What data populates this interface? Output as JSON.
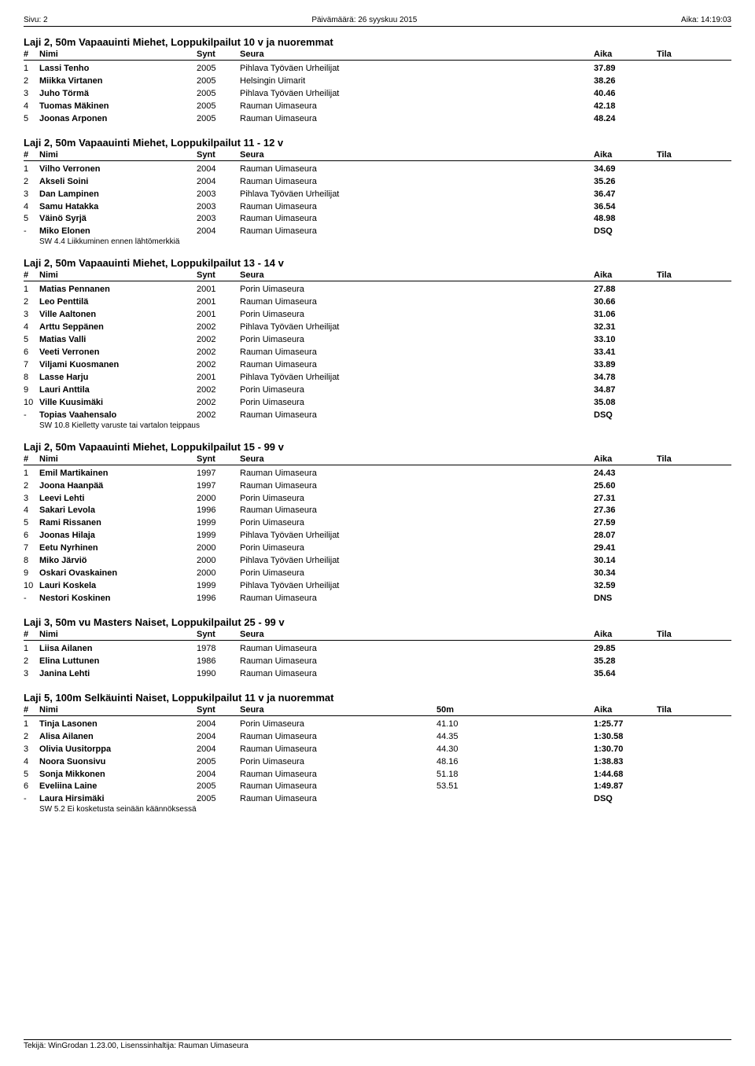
{
  "header": {
    "page": "Sivu: 2",
    "date": "Päivämäärä: 26 syyskuu 2015",
    "time": "Aika: 14:19:03"
  },
  "columns": {
    "rank": "#",
    "name": "Nimi",
    "synt": "Synt",
    "seura": "Seura",
    "split": "50m",
    "aika": "Aika",
    "tila": "Tila"
  },
  "events": [
    {
      "title": "Laji 2, 50m Vapaauinti Miehet, Loppukilpailut 10 v ja nuoremmat",
      "has_split": false,
      "rows": [
        {
          "r": "1",
          "name": "Lassi Tenho",
          "synt": "2005",
          "seura": "Pihlava Työväen Urheilijat",
          "aika": "37.89"
        },
        {
          "r": "2",
          "name": "Miikka Virtanen",
          "synt": "2005",
          "seura": "Helsingin Uimarit",
          "aika": "38.26"
        },
        {
          "r": "3",
          "name": "Juho Törmä",
          "synt": "2005",
          "seura": "Pihlava Työväen Urheilijat",
          "aika": "40.46"
        },
        {
          "r": "4",
          "name": "Tuomas Mäkinen",
          "synt": "2005",
          "seura": "Rauman Uimaseura",
          "aika": "42.18"
        },
        {
          "r": "5",
          "name": "Joonas Arponen",
          "synt": "2005",
          "seura": "Rauman Uimaseura",
          "aika": "48.24"
        }
      ]
    },
    {
      "title": "Laji 2, 50m Vapaauinti Miehet, Loppukilpailut 11 - 12 v",
      "has_split": false,
      "rows": [
        {
          "r": "1",
          "name": "Vilho Verronen",
          "synt": "2004",
          "seura": "Rauman Uimaseura",
          "aika": "34.69"
        },
        {
          "r": "2",
          "name": "Akseli Soini",
          "synt": "2004",
          "seura": "Rauman Uimaseura",
          "aika": "35.26"
        },
        {
          "r": "3",
          "name": "Dan Lampinen",
          "synt": "2003",
          "seura": "Pihlava Työväen Urheilijat",
          "aika": "36.47"
        },
        {
          "r": "4",
          "name": "Samu Hatakka",
          "synt": "2003",
          "seura": "Rauman Uimaseura",
          "aika": "36.54"
        },
        {
          "r": "5",
          "name": "Väinö Syrjä",
          "synt": "2003",
          "seura": "Rauman Uimaseura",
          "aika": "48.98"
        },
        {
          "r": "-",
          "name": "Miko Elonen",
          "synt": "2004",
          "seura": "Rauman Uimaseura",
          "aika": "DSQ",
          "note": "SW 4.4 Liikkuminen ennen lähtömerkkiä"
        }
      ]
    },
    {
      "title": "Laji 2, 50m Vapaauinti Miehet, Loppukilpailut 13 - 14 v",
      "has_split": false,
      "rows": [
        {
          "r": "1",
          "name": "Matias Pennanen",
          "synt": "2001",
          "seura": "Porin Uimaseura",
          "aika": "27.88"
        },
        {
          "r": "2",
          "name": "Leo Penttilä",
          "synt": "2001",
          "seura": "Rauman Uimaseura",
          "aika": "30.66"
        },
        {
          "r": "3",
          "name": "Ville Aaltonen",
          "synt": "2001",
          "seura": "Porin Uimaseura",
          "aika": "31.06"
        },
        {
          "r": "4",
          "name": "Arttu Seppänen",
          "synt": "2002",
          "seura": "Pihlava Työväen Urheilijat",
          "aika": "32.31"
        },
        {
          "r": "5",
          "name": "Matias Valli",
          "synt": "2002",
          "seura": "Porin Uimaseura",
          "aika": "33.10"
        },
        {
          "r": "6",
          "name": "Veeti Verronen",
          "synt": "2002",
          "seura": "Rauman Uimaseura",
          "aika": "33.41"
        },
        {
          "r": "7",
          "name": "Viljami Kuosmanen",
          "synt": "2002",
          "seura": "Rauman Uimaseura",
          "aika": "33.89"
        },
        {
          "r": "8",
          "name": "Lasse Harju",
          "synt": "2001",
          "seura": "Pihlava Työväen Urheilijat",
          "aika": "34.78"
        },
        {
          "r": "9",
          "name": "Lauri Anttila",
          "synt": "2002",
          "seura": "Porin Uimaseura",
          "aika": "34.87"
        },
        {
          "r": "10",
          "name": "Ville Kuusimäki",
          "synt": "2002",
          "seura": "Porin Uimaseura",
          "aika": "35.08"
        },
        {
          "r": "-",
          "name": "Topias Vaahensalo",
          "synt": "2002",
          "seura": "Rauman Uimaseura",
          "aika": "DSQ",
          "note": "SW 10.8 Kielletty varuste tai vartalon teippaus"
        }
      ]
    },
    {
      "title": "Laji 2, 50m Vapaauinti Miehet, Loppukilpailut 15 - 99 v",
      "has_split": false,
      "rows": [
        {
          "r": "1",
          "name": "Emil Martikainen",
          "synt": "1997",
          "seura": "Rauman Uimaseura",
          "aika": "24.43"
        },
        {
          "r": "2",
          "name": "Joona Haanpää",
          "synt": "1997",
          "seura": "Rauman Uimaseura",
          "aika": "25.60"
        },
        {
          "r": "3",
          "name": "Leevi Lehti",
          "synt": "2000",
          "seura": "Porin Uimaseura",
          "aika": "27.31"
        },
        {
          "r": "4",
          "name": "Sakari Levola",
          "synt": "1996",
          "seura": "Rauman Uimaseura",
          "aika": "27.36"
        },
        {
          "r": "5",
          "name": "Rami Rissanen",
          "synt": "1999",
          "seura": "Porin Uimaseura",
          "aika": "27.59"
        },
        {
          "r": "6",
          "name": "Joonas Hilaja",
          "synt": "1999",
          "seura": "Pihlava Työväen Urheilijat",
          "aika": "28.07"
        },
        {
          "r": "7",
          "name": "Eetu Nyrhinen",
          "synt": "2000",
          "seura": "Porin Uimaseura",
          "aika": "29.41"
        },
        {
          "r": "8",
          "name": "Miko Järviö",
          "synt": "2000",
          "seura": "Pihlava Työväen Urheilijat",
          "aika": "30.14"
        },
        {
          "r": "9",
          "name": "Oskari Ovaskainen",
          "synt": "2000",
          "seura": "Porin Uimaseura",
          "aika": "30.34"
        },
        {
          "r": "10",
          "name": "Lauri Koskela",
          "synt": "1999",
          "seura": "Pihlava Työväen Urheilijat",
          "aika": "32.59"
        },
        {
          "r": "-",
          "name": "Nestori Koskinen",
          "synt": "1996",
          "seura": "Rauman Uimaseura",
          "aika": "DNS"
        }
      ]
    },
    {
      "title": "Laji 3, 50m vu Masters Naiset, Loppukilpailut 25 - 99 v",
      "has_split": false,
      "rows": [
        {
          "r": "1",
          "name": "Liisa Ailanen",
          "synt": "1978",
          "seura": "Rauman Uimaseura",
          "aika": "29.85"
        },
        {
          "r": "2",
          "name": "Elina Luttunen",
          "synt": "1986",
          "seura": "Rauman Uimaseura",
          "aika": "35.28"
        },
        {
          "r": "3",
          "name": "Janina Lehti",
          "synt": "1990",
          "seura": "Rauman Uimaseura",
          "aika": "35.64"
        }
      ]
    },
    {
      "title": "Laji 5, 100m Selkäuinti Naiset, Loppukilpailut 11 v ja nuoremmat",
      "has_split": true,
      "rows": [
        {
          "r": "1",
          "name": "Tinja Lasonen",
          "synt": "2004",
          "seura": "Porin Uimaseura",
          "split": "41.10",
          "aika": "1:25.77"
        },
        {
          "r": "2",
          "name": "Alisa Ailanen",
          "synt": "2004",
          "seura": "Rauman Uimaseura",
          "split": "44.35",
          "aika": "1:30.58"
        },
        {
          "r": "3",
          "name": "Olivia Uusitorppa",
          "synt": "2004",
          "seura": "Rauman Uimaseura",
          "split": "44.30",
          "aika": "1:30.70"
        },
        {
          "r": "4",
          "name": "Noora Suonsivu",
          "synt": "2005",
          "seura": "Porin Uimaseura",
          "split": "48.16",
          "aika": "1:38.83"
        },
        {
          "r": "5",
          "name": "Sonja Mikkonen",
          "synt": "2004",
          "seura": "Rauman Uimaseura",
          "split": "51.18",
          "aika": "1:44.68"
        },
        {
          "r": "6",
          "name": "Eveliina Laine",
          "synt": "2005",
          "seura": "Rauman Uimaseura",
          "split": "53.51",
          "aika": "1:49.87"
        },
        {
          "r": "-",
          "name": "Laura Hirsimäki",
          "synt": "2005",
          "seura": "Rauman Uimaseura",
          "split": "",
          "aika": "DSQ",
          "note": "SW 5.2 Ei kosketusta seinään käännöksessä"
        }
      ]
    }
  ],
  "footer": "Tekijä: WinGrodan 1.23.00, Lisenssinhaltija: Rauman Uimaseura"
}
